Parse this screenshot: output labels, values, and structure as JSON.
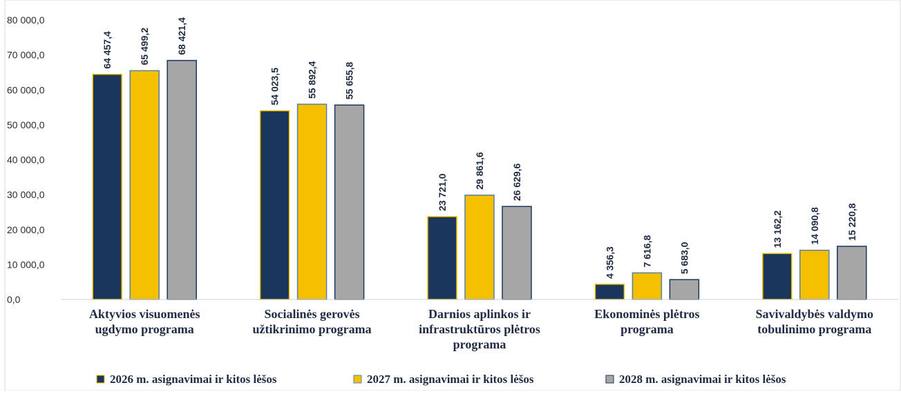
{
  "chart_data": {
    "type": "bar",
    "title": "",
    "xlabel": "",
    "ylabel": "",
    "ylim": [
      0,
      80000
    ],
    "ytick_step": 10000,
    "ytick_labels": [
      "0,0",
      "10 000,0",
      "20 000,0",
      "30 000,0",
      "40 000,0",
      "50 000,0",
      "60 000,0",
      "70 000,0",
      "80 000,0"
    ],
    "grid": false,
    "legend_position": "bottom",
    "categories": [
      [
        "Aktyvios visuomenės",
        "ugdymo programa"
      ],
      [
        "Socialinės gerovės",
        "užtikrinimo programa"
      ],
      [
        "Darnios aplinkos ir",
        "infrastruktūros plėtros",
        "programa"
      ],
      [
        "Ekonominės plėtros",
        "programa"
      ],
      [
        "Savivaldybės valdymo",
        "tobulinimo programa"
      ]
    ],
    "series": [
      {
        "name": "2026 m. asignavimai ir kitos lėšos",
        "color": "#1b365d",
        "stroke": "#f2c100",
        "values": [
          64457.4,
          54023.5,
          23721.0,
          4356.3,
          13162.2
        ],
        "labels": [
          "64 457,4",
          "54 023,5",
          "23 721,0",
          "4 356,3",
          "13 162,2"
        ]
      },
      {
        "name": "2027 m. asignavimai ir kitos lėšos",
        "color": "#f4c000",
        "stroke": "#5a7fa8",
        "values": [
          65499.2,
          55892.4,
          29861.6,
          7616.8,
          14090.8
        ],
        "labels": [
          "65 499,2",
          "55 892,4",
          "29 861,6",
          "7 616,8",
          "14 090,8"
        ]
      },
      {
        "name": "2028 m. asignavimai ir kitos lėšos",
        "color": "#a6a6a6",
        "stroke": "#1b365d",
        "values": [
          68421.4,
          55655.8,
          26629.6,
          5683.0,
          15220.8
        ],
        "labels": [
          "68 421,4",
          "55 655,8",
          "26 629,6",
          "5 683,0",
          "15 220,8"
        ]
      }
    ]
  }
}
